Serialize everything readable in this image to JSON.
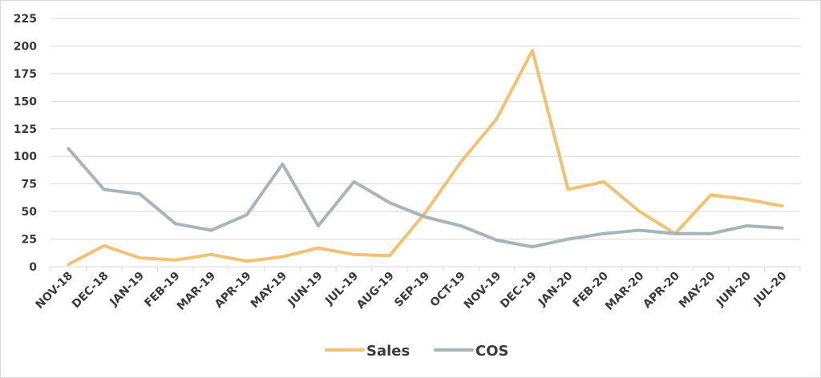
{
  "chart_data": {
    "type": "line",
    "categories": [
      "NOV-18",
      "DEC-18",
      "JAN-19",
      "FEB-19",
      "MAR-19",
      "APR-19",
      "MAY-19",
      "JUN-19",
      "JUL-19",
      "AUG-19",
      "SEP-19",
      "OCT-19",
      "NOV-19",
      "DEC-19",
      "JAN-20",
      "FEB-20",
      "MAR-20",
      "APR-20",
      "MAY-20",
      "JUN-20",
      "JUL-20"
    ],
    "series": [
      {
        "name": "Sales",
        "color": "#f0c272",
        "values": [
          2,
          19,
          8,
          6,
          11,
          5,
          9,
          17,
          11,
          10,
          49,
          95,
          134,
          196,
          70,
          77,
          50,
          30,
          65,
          61,
          55
        ]
      },
      {
        "name": "COS",
        "color": "#a7b5bb",
        "values": [
          107,
          70,
          66,
          39,
          33,
          47,
          93,
          37,
          77,
          58,
          45,
          37,
          24,
          18,
          25,
          30,
          33,
          30,
          30,
          37,
          35
        ]
      }
    ],
    "ylim": [
      0,
      225
    ],
    "yticks": [
      0,
      25,
      50,
      75,
      100,
      125,
      150,
      175,
      200,
      225
    ],
    "grid": true,
    "legend": "bottom"
  }
}
